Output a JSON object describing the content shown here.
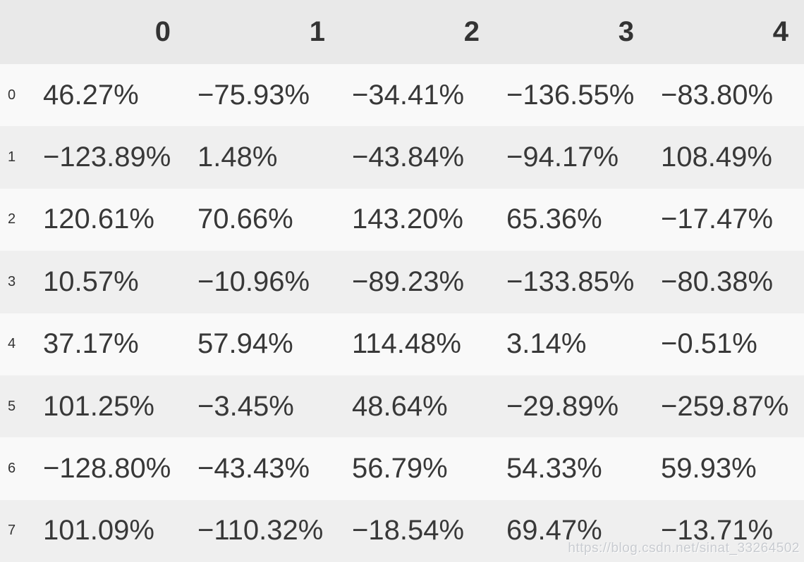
{
  "chart_data": {
    "type": "table",
    "title": "",
    "columns": [
      "0",
      "1",
      "2",
      "3",
      "4"
    ],
    "rows": [
      {
        "index": "0",
        "values": [
          "46.27%",
          "−75.93%",
          "−34.41%",
          "−136.55%",
          "−83.80%"
        ]
      },
      {
        "index": "1",
        "values": [
          "−123.89%",
          "1.48%",
          "−43.84%",
          "−94.17%",
          "108.49%"
        ]
      },
      {
        "index": "2",
        "values": [
          "120.61%",
          "70.66%",
          "143.20%",
          "65.36%",
          "−17.47%"
        ]
      },
      {
        "index": "3",
        "values": [
          "10.57%",
          "−10.96%",
          "−89.23%",
          "−133.85%",
          "−80.38%"
        ]
      },
      {
        "index": "4",
        "values": [
          "37.17%",
          "57.94%",
          "114.48%",
          "3.14%",
          "−0.51%"
        ]
      },
      {
        "index": "5",
        "values": [
          "101.25%",
          "−3.45%",
          "48.64%",
          "−29.89%",
          "−259.87%"
        ]
      },
      {
        "index": "6",
        "values": [
          "−128.80%",
          "−43.43%",
          "56.79%",
          "54.33%",
          "59.93%"
        ]
      },
      {
        "index": "7",
        "values": [
          "101.09%",
          "−110.32%",
          "−18.54%",
          "69.47%",
          "−13.71%"
        ]
      }
    ]
  },
  "watermark": {
    "text": "https://blog.csdn.net/sinat_33264502"
  },
  "colors": {
    "header_bg": "#e9e9e9",
    "row_even_bg": "#f9f9f9",
    "row_odd_bg": "#efefef",
    "text": "#383838",
    "watermark": "#b9bec4"
  }
}
